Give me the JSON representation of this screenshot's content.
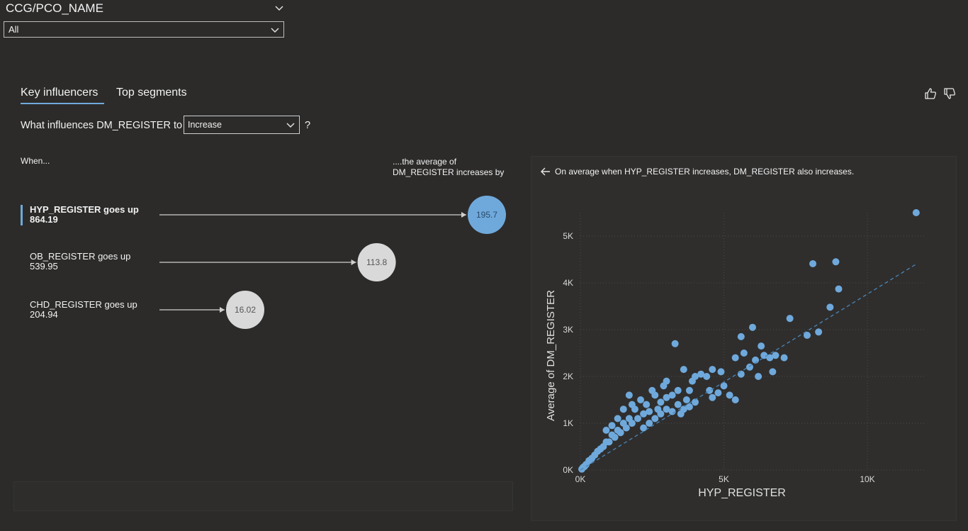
{
  "slicer": {
    "title": "CCG/PCO_NAME",
    "value": "All"
  },
  "tabs": [
    {
      "label": "Key influencers",
      "active": true
    },
    {
      "label": "Top segments",
      "active": false
    }
  ],
  "feedback": {
    "like_icon": "thumbs-up-icon",
    "dislike_icon": "thumbs-down-icon"
  },
  "question": {
    "prefix": "What influences DM_REGISTER to",
    "dropdown_value": "Increase",
    "suffix": "?"
  },
  "influencers_panel": {
    "when_header": "When...",
    "avg_header": "....the average of DM_REGISTER increases by",
    "items": [
      {
        "label": "HYP_REGISTER goes up",
        "amount": "864.19",
        "value": 195.7,
        "value_label": "195.7",
        "selected": true
      },
      {
        "label": "OB_REGISTER goes up",
        "amount": "539.95",
        "value": 113.8,
        "value_label": "113.8",
        "selected": false
      },
      {
        "label": "CHD_REGISTER goes up",
        "amount": "204.94",
        "value": 16.02,
        "value_label": "16.02",
        "selected": false
      }
    ]
  },
  "detail": {
    "back_icon": "back-arrow-icon",
    "message": "On average when HYP_REGISTER increases, DM_REGISTER also increases."
  },
  "chart_data": {
    "type": "scatter",
    "xlabel": "HYP_REGISTER",
    "ylabel": "Average of DM_REGISTER",
    "xlim": [
      0,
      12000
    ],
    "ylim": [
      0,
      5500
    ],
    "x_ticks": [
      0,
      5000,
      10000
    ],
    "x_tick_labels": [
      "0K",
      "5K",
      "10K"
    ],
    "y_ticks": [
      0,
      1000,
      2000,
      3000,
      4000,
      5000
    ],
    "y_tick_labels": [
      "0K",
      "1K",
      "2K",
      "3K",
      "4K",
      "5K"
    ],
    "grid": true,
    "trendline": {
      "style": "dashed",
      "from": [
        0,
        0
      ],
      "to": [
        11700,
        4400
      ]
    },
    "point_color": "#6fa9dc",
    "points": [
      [
        11700,
        5500
      ],
      [
        8100,
        4410
      ],
      [
        8900,
        4450
      ],
      [
        9000,
        3870
      ],
      [
        8700,
        3480
      ],
      [
        7300,
        3240
      ],
      [
        8300,
        2950
      ],
      [
        7900,
        2880
      ],
      [
        6000,
        3050
      ],
      [
        5600,
        2850
      ],
      [
        3300,
        2700
      ],
      [
        6300,
        2650
      ],
      [
        6400,
        2450
      ],
      [
        5700,
        2500
      ],
      [
        6100,
        2350
      ],
      [
        6600,
        2400
      ],
      [
        6800,
        2450
      ],
      [
        7100,
        2400
      ],
      [
        5900,
        2200
      ],
      [
        6700,
        2100
      ],
      [
        6200,
        2000
      ],
      [
        5400,
        2400
      ],
      [
        5600,
        2050
      ],
      [
        4900,
        2100
      ],
      [
        4600,
        2150
      ],
      [
        4400,
        2000
      ],
      [
        3600,
        2150
      ],
      [
        3000,
        1900
      ],
      [
        4000,
        2000
      ],
      [
        4200,
        2050
      ],
      [
        5000,
        1800
      ],
      [
        5200,
        1600
      ],
      [
        5400,
        1500
      ],
      [
        4500,
        1700
      ],
      [
        4800,
        1650
      ],
      [
        4600,
        1550
      ],
      [
        3900,
        1900
      ],
      [
        3800,
        1700
      ],
      [
        3700,
        1500
      ],
      [
        3400,
        1700
      ],
      [
        3200,
        1600
      ],
      [
        3000,
        1550
      ],
      [
        2800,
        1450
      ],
      [
        2700,
        1300
      ],
      [
        2600,
        1600
      ],
      [
        2400,
        1250
      ],
      [
        2300,
        1400
      ],
      [
        2200,
        1200
      ],
      [
        2000,
        1100
      ],
      [
        1900,
        1300
      ],
      [
        1800,
        1000
      ],
      [
        1700,
        1100
      ],
      [
        1600,
        900
      ],
      [
        1500,
        1000
      ],
      [
        1400,
        800
      ],
      [
        1300,
        850
      ],
      [
        1200,
        700
      ],
      [
        1100,
        750
      ],
      [
        1000,
        600
      ],
      [
        900,
        600
      ],
      [
        800,
        500
      ],
      [
        700,
        450
      ],
      [
        600,
        400
      ],
      [
        500,
        320
      ],
      [
        400,
        250
      ],
      [
        300,
        200
      ],
      [
        200,
        120
      ],
      [
        150,
        80
      ],
      [
        100,
        60
      ],
      [
        50,
        20
      ],
      [
        1700,
        1600
      ],
      [
        2400,
        1000
      ],
      [
        2600,
        1100
      ],
      [
        2800,
        1200
      ],
      [
        3000,
        1300
      ],
      [
        3200,
        1250
      ],
      [
        3400,
        1400
      ],
      [
        3500,
        1200
      ],
      [
        3600,
        1300
      ],
      [
        3800,
        1350
      ],
      [
        4000,
        1450
      ],
      [
        1500,
        1300
      ],
      [
        1300,
        1100
      ],
      [
        1100,
        950
      ],
      [
        900,
        850
      ],
      [
        2100,
        1500
      ],
      [
        2500,
        1700
      ],
      [
        2900,
        1800
      ],
      [
        1800,
        1400
      ],
      [
        2200,
        900
      ]
    ]
  }
}
